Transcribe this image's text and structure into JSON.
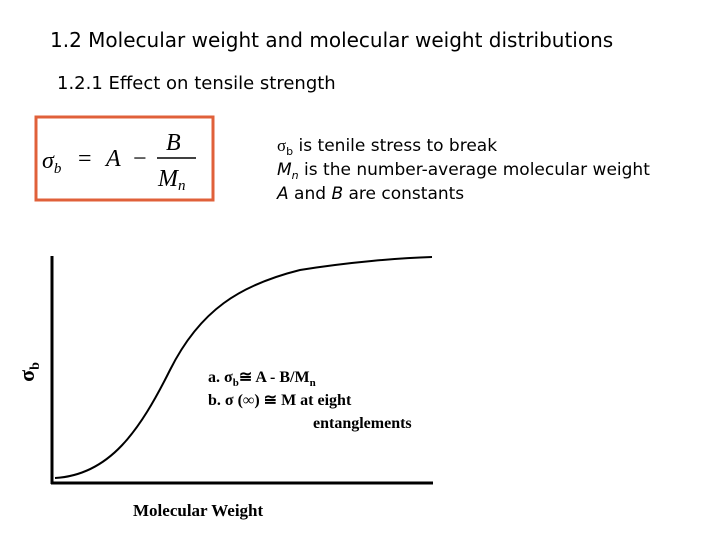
{
  "header": {
    "title": "1.2 Molecular weight and molecular weight distributions",
    "subtitle": "1.2.1 Effect on tensile strength"
  },
  "formula": {
    "lhs_symbol": "σ",
    "lhs_subscript": "b",
    "equals": "=",
    "constant_a": "A",
    "minus": "−",
    "numerator": "B",
    "denominator_symbol": "M",
    "denominator_subscript": "n"
  },
  "definitions": [
    [
      "σ",
      "b",
      " is tenile stress to break"
    ],
    [
      "M",
      "n",
      " is the number-average molecular weight"
    ],
    [
      "A",
      " and ",
      "B",
      " are constants"
    ]
  ],
  "graph": {
    "y_label": [
      "σ",
      "b"
    ],
    "annotations": [
      [
        "a. σ",
        "b",
        "≅ A - B/M",
        "n"
      ],
      [
        "b. σ (∞) ≅ M at eight"
      ],
      [
        "entanglements"
      ]
    ],
    "x_label": "Molecular Weight"
  }
}
